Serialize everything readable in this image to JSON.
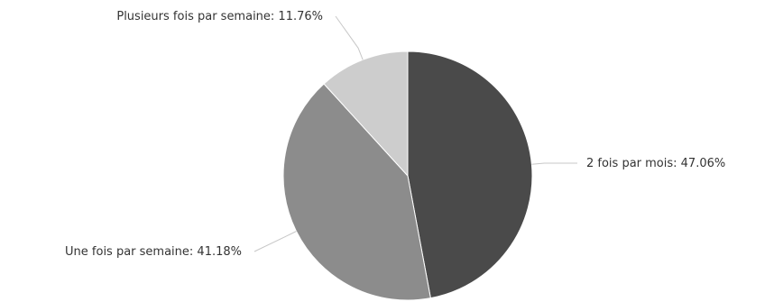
{
  "chart_data": {
    "type": "pie",
    "title": "",
    "start_angle_deg": 0,
    "direction": "clockwise",
    "slices": [
      {
        "label": "2 fois par mois",
        "value": 47.06,
        "display": "2 fois par mois: 47.06%",
        "color": "#4a4a4a"
      },
      {
        "label": "Une fois par semaine",
        "value": 41.18,
        "display": "Une fois par semaine: 41.18%",
        "color": "#8c8c8c"
      },
      {
        "label": "Plusieurs fois par semaine",
        "value": 11.76,
        "display": "Plusieurs fois par semaine: 11.76%",
        "color": "#cdcdcd"
      }
    ]
  }
}
